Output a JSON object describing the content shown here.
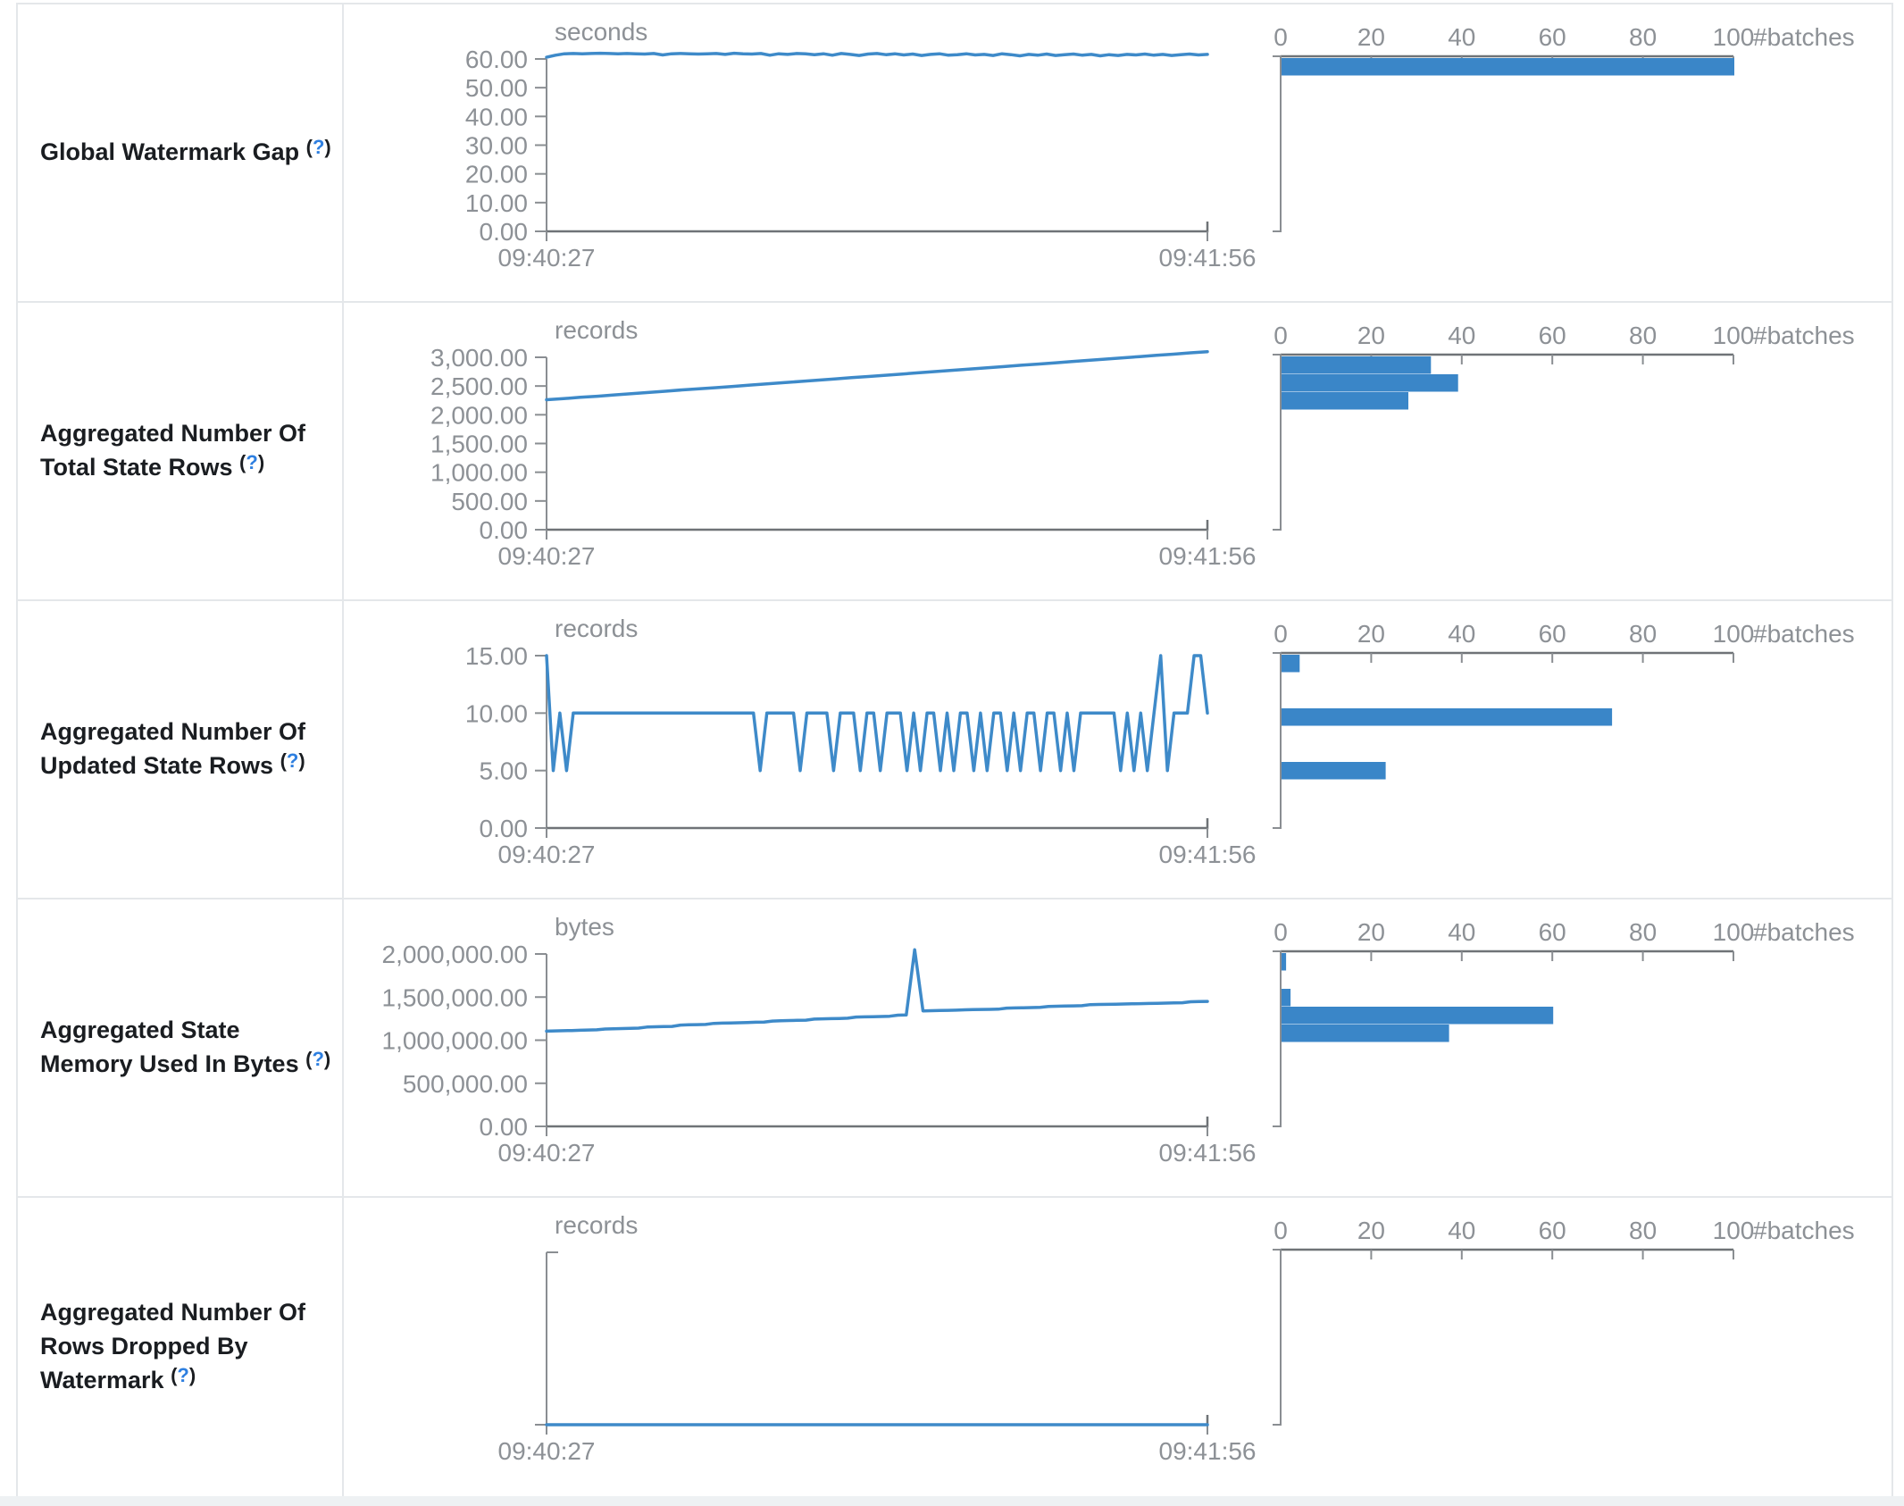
{
  "colors": {
    "line_blue": "#3e8ac9",
    "bar_blue": "#3a86c8",
    "axis_strong": "#6f7377",
    "axis_light": "#8a8e92",
    "tick_text": "#8d9196",
    "label_text": "#1a1d21",
    "help_blue": "#2e7fe0",
    "border": "#e4e7ea"
  },
  "x_axis": {
    "start_label": "09:40:27",
    "end_label": "09:41:56"
  },
  "histogram_axis": {
    "tick_labels": [
      "0",
      "20",
      "40",
      "60",
      "80",
      "100"
    ],
    "max": 100,
    "label": "#batches"
  },
  "rows": [
    {
      "title": "Global Watermark Gap",
      "help_marker_open": "(",
      "help_marker_q": "?",
      "help_marker_close": ")"
    },
    {
      "title": "Aggregated Number Of Total State Rows",
      "help_marker_open": "(",
      "help_marker_q": "?",
      "help_marker_close": ")"
    },
    {
      "title": "Aggregated Number Of Updated State Rows",
      "help_marker_open": "(",
      "help_marker_q": "?",
      "help_marker_close": ")"
    },
    {
      "title": "Aggregated State Memory Used In Bytes",
      "help_marker_open": "(",
      "help_marker_q": "?",
      "help_marker_close": ")"
    },
    {
      "title": "Aggregated Number Of Rows Dropped By Watermark",
      "help_marker_open": "(",
      "help_marker_q": "?",
      "help_marker_close": ")"
    }
  ],
  "chart_data": [
    {
      "type": "line",
      "title": "Global Watermark Gap",
      "unit": "seconds",
      "x_ticks": [
        "09:40:27",
        "09:41:56"
      ],
      "y_tick_labels": [
        "60.00",
        "50.00",
        "40.00",
        "30.00",
        "20.00",
        "10.00",
        "0.00"
      ],
      "y_top_value": 60,
      "timeline_values": [
        60.6,
        61.3,
        61.8,
        61.9,
        61.8,
        61.9,
        62.0,
        61.9,
        61.8,
        61.9,
        61.8,
        61.7,
        61.9,
        61.4,
        61.8,
        61.9,
        61.8,
        61.7,
        61.8,
        61.9,
        61.6,
        62.0,
        61.8,
        61.7,
        61.9,
        61.3,
        61.8,
        61.6,
        61.9,
        61.8,
        61.5,
        61.8,
        61.3,
        61.9,
        61.6,
        61.2,
        61.7,
        61.9,
        61.5,
        61.8,
        61.4,
        61.7,
        61.2,
        61.6,
        61.8,
        61.3,
        61.5,
        61.8,
        61.4,
        61.6,
        61.2,
        61.8,
        61.5,
        61.1,
        61.6,
        61.3,
        61.7,
        61.2,
        61.5,
        61.7,
        61.3,
        61.6,
        61.1,
        61.5,
        61.2,
        61.6,
        61.4,
        61.7,
        61.3,
        61.6,
        61.2,
        61.5,
        61.7,
        61.4,
        61.6
      ],
      "histogram_bars": [
        {
          "bin": 0,
          "count": 100
        }
      ]
    },
    {
      "type": "line",
      "title": "Aggregated Number Of Total State Rows",
      "unit": "records",
      "x_ticks": [
        "09:40:27",
        "09:41:56"
      ],
      "y_tick_labels": [
        "3,000.00",
        "2,500.00",
        "2,000.00",
        "1,500.00",
        "1,000.00",
        "500.00",
        "0.00"
      ],
      "y_top_value": 3000,
      "timeline_values": [
        2262,
        2281,
        2303,
        2322,
        2345,
        2366,
        2388,
        2410,
        2432,
        2451,
        2472,
        2494,
        2516,
        2537,
        2558,
        2580,
        2602,
        2623,
        2645,
        2666,
        2688,
        2710,
        2731,
        2753,
        2774,
        2796,
        2818,
        2839,
        2861,
        2882,
        2904,
        2926,
        2947,
        2969,
        2990,
        3012,
        3034,
        3055,
        3077,
        3098
      ],
      "histogram_bars": [
        {
          "bin": 0,
          "count": 33
        },
        {
          "bin": 1,
          "count": 39
        },
        {
          "bin": 2,
          "count": 28
        }
      ]
    },
    {
      "type": "line",
      "title": "Aggregated Number Of Updated State Rows",
      "unit": "records",
      "x_ticks": [
        "09:40:27",
        "09:41:56"
      ],
      "y_tick_labels": [
        "15.00",
        "10.00",
        "5.00",
        "0.00"
      ],
      "y_top_value": 15,
      "timeline_values": [
        15,
        5,
        10,
        5,
        10,
        10,
        10,
        10,
        10,
        10,
        10,
        10,
        10,
        10,
        10,
        10,
        10,
        10,
        10,
        10,
        10,
        10,
        10,
        10,
        10,
        10,
        10,
        10,
        10,
        10,
        10,
        10,
        5,
        10,
        10,
        10,
        10,
        10,
        5,
        10,
        10,
        10,
        10,
        5,
        10,
        10,
        10,
        5,
        10,
        10,
        5,
        10,
        10,
        10,
        5,
        10,
        5,
        10,
        10,
        5,
        10,
        5,
        10,
        10,
        5,
        10,
        5,
        10,
        10,
        5,
        10,
        5,
        10,
        10,
        5,
        10,
        10,
        5,
        10,
        5,
        10,
        10,
        10,
        10,
        10,
        10,
        5,
        10,
        5,
        10,
        5,
        10,
        15,
        5,
        10,
        10,
        10,
        15,
        15,
        10
      ],
      "histogram_bars": [
        {
          "bin": 0,
          "count": 4
        },
        {
          "bin": 3,
          "count": 73
        },
        {
          "bin": 6,
          "count": 23
        }
      ]
    },
    {
      "type": "line",
      "title": "Aggregated State Memory Used In Bytes",
      "unit": "bytes",
      "x_ticks": [
        "09:40:27",
        "09:41:56"
      ],
      "y_tick_labels": [
        "2,000,000.00",
        "1,500,000.00",
        "1,000,000.00",
        "500,000.00",
        "0.00"
      ],
      "y_top_value": 2000000,
      "timeline_values": [
        1105000,
        1108000,
        1110000,
        1112000,
        1115000,
        1118000,
        1120000,
        1130000,
        1132000,
        1135000,
        1138000,
        1140000,
        1152000,
        1155000,
        1158000,
        1160000,
        1175000,
        1178000,
        1180000,
        1182000,
        1195000,
        1198000,
        1200000,
        1202000,
        1205000,
        1208000,
        1210000,
        1222000,
        1225000,
        1228000,
        1230000,
        1232000,
        1245000,
        1248000,
        1250000,
        1252000,
        1255000,
        1268000,
        1270000,
        1272000,
        1275000,
        1278000,
        1290000,
        1292000,
        2050000,
        1340000,
        1342000,
        1344000,
        1346000,
        1348000,
        1352000,
        1354000,
        1356000,
        1358000,
        1360000,
        1372000,
        1374000,
        1376000,
        1378000,
        1380000,
        1392000,
        1394000,
        1396000,
        1398000,
        1400000,
        1412000,
        1414000,
        1416000,
        1418000,
        1420000,
        1422000,
        1424000,
        1426000,
        1428000,
        1430000,
        1432000,
        1434000,
        1446000,
        1448000,
        1450000
      ],
      "histogram_bars": [
        {
          "bin": 0,
          "count": 1
        },
        {
          "bin": 2,
          "count": 2
        },
        {
          "bin": 3,
          "count": 60
        },
        {
          "bin": 4,
          "count": 37
        }
      ]
    },
    {
      "type": "line",
      "title": "Aggregated Number Of Rows Dropped By Watermark",
      "unit": "records",
      "x_ticks": [
        "09:40:27",
        "09:41:56"
      ],
      "y_tick_labels": [],
      "y_top_value": 1,
      "timeline_values": [
        0,
        0
      ],
      "histogram_bars": []
    }
  ]
}
